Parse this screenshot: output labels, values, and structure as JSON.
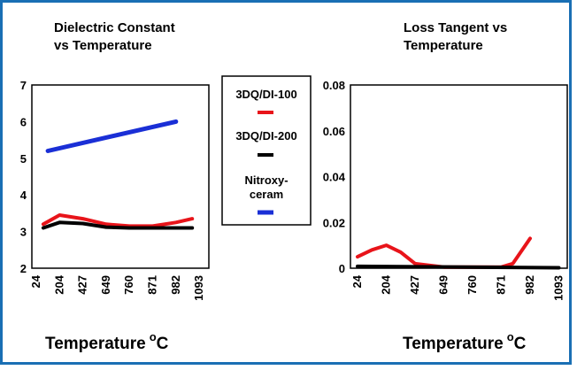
{
  "colors": {
    "frame": "#1a6fb4",
    "red": "#e8141a",
    "black": "#000000",
    "blue": "#1a2fd6"
  },
  "legend": {
    "items": [
      {
        "name": "3DQ/DI-100",
        "color": "#e8141a"
      },
      {
        "name": "3DQ/DI-200",
        "color": "#000000"
      },
      {
        "name": "Nitroxy-ceram",
        "line1": "Nitroxy-",
        "line2": "ceram",
        "color": "#1a2fd6"
      }
    ]
  },
  "chart_data": [
    {
      "type": "line",
      "title_line1": "Dielectric Constant",
      "title_line2": "vs Temperature",
      "title": "Dielectric Constant vs Temperature",
      "xlabel": "Temperature",
      "xlabel_unit": "o",
      "xlabel_unit_suffix": "C",
      "x_ticks": [
        "24",
        "204",
        "427",
        "649",
        "760",
        "871",
        "982",
        "1093"
      ],
      "ylim": [
        2,
        7
      ],
      "y_ticks": [
        "2",
        "3",
        "4",
        "5",
        "6",
        "7"
      ],
      "y_tick_values": [
        2,
        3,
        4,
        5,
        6,
        7
      ],
      "series": [
        {
          "name": "3DQ/DI-100",
          "color": "#e8141a",
          "x": [
            0.3,
            1,
            2,
            3,
            4,
            5,
            6,
            6.7
          ],
          "values": [
            3.2,
            3.45,
            3.35,
            3.2,
            3.15,
            3.15,
            3.25,
            3.35
          ]
        },
        {
          "name": "3DQ/DI-200",
          "color": "#000000",
          "x": [
            0.3,
            1,
            2,
            3,
            4,
            5,
            6,
            6.7
          ],
          "values": [
            3.1,
            3.25,
            3.22,
            3.12,
            3.1,
            3.1,
            3.1,
            3.1
          ]
        },
        {
          "name": "Nitroxy-ceram",
          "color": "#1a2fd6",
          "x": [
            0.5,
            6
          ],
          "values": [
            5.2,
            6.0
          ]
        }
      ]
    },
    {
      "type": "line",
      "title_line1": "Loss Tangent vs",
      "title_line2": "Temperature",
      "title": "Loss Tangent vs Temperature",
      "xlabel": "Temperature",
      "xlabel_unit": "o",
      "xlabel_unit_suffix": "C",
      "x_ticks": [
        "24",
        "204",
        "427",
        "649",
        "760",
        "871",
        "982",
        "1093"
      ],
      "ylim": [
        0,
        0.08
      ],
      "y_ticks": [
        "0",
        "0.02",
        "0.04",
        "0.06",
        "0.08"
      ],
      "y_tick_values": [
        0,
        0.02,
        0.04,
        0.06,
        0.08
      ],
      "series": [
        {
          "name": "3DQ/DI-100",
          "color": "#e8141a",
          "x": [
            0,
            0.5,
            1,
            1.5,
            2,
            3,
            4,
            5,
            5.4,
            6
          ],
          "values": [
            0.005,
            0.008,
            0.01,
            0.007,
            0.002,
            0.0005,
            0.0005,
            0.0005,
            0.002,
            0.013
          ]
        },
        {
          "name": "3DQ/DI-200",
          "color": "#000000",
          "x": [
            0,
            7
          ],
          "values": [
            0.0008,
            0.0002
          ]
        }
      ]
    }
  ]
}
